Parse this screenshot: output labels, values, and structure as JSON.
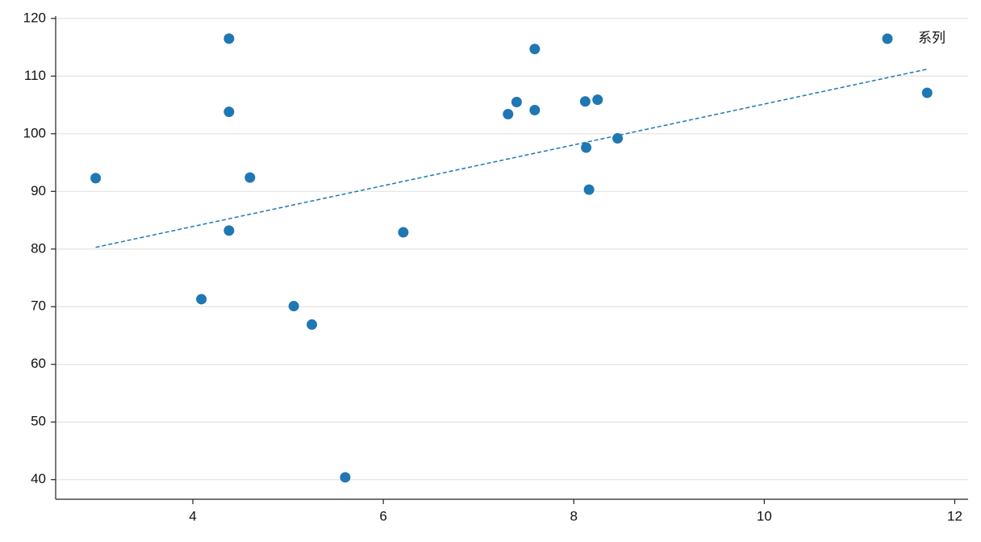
{
  "chart_data": {
    "type": "scatter",
    "series": [
      {
        "name": "系列",
        "color": "#1f77b4",
        "x": [
          2.98,
          4.09,
          4.38,
          4.38,
          4.38,
          4.6,
          5.06,
          5.25,
          5.6,
          6.21,
          7.31,
          7.4,
          7.59,
          7.59,
          8.12,
          8.13,
          8.16,
          8.25,
          8.46,
          11.71
        ],
        "values": [
          92.3,
          71.3,
          116.5,
          103.8,
          83.2,
          92.4,
          70.1,
          66.9,
          40.4,
          82.9,
          103.4,
          105.5,
          114.7,
          104.1,
          105.6,
          97.6,
          90.3,
          105.9,
          99.2,
          107.1
        ]
      }
    ],
    "trend": {
      "x": [
        2.98,
        11.71
      ],
      "values": [
        80.3,
        111.2
      ],
      "color": "#1f77b4"
    },
    "xlim": [
      2.56,
      12.14
    ],
    "ylim": [
      36.6,
      120.4
    ],
    "xticks": [
      4,
      6,
      8,
      10,
      12
    ],
    "yticks": [
      40,
      50,
      60,
      70,
      80,
      90,
      100,
      110,
      120
    ],
    "grid": "y",
    "legend": "upper right"
  }
}
